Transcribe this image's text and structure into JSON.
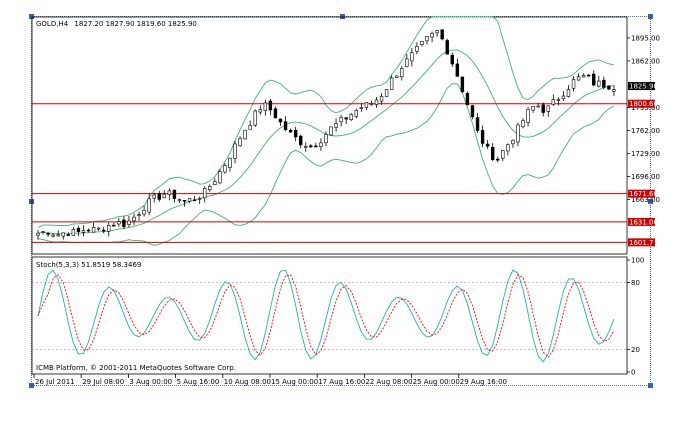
{
  "header": {
    "symbol": "GOLD,H4",
    "ohlc": "1827.20 1827.90 1819.60 1825.90"
  },
  "indicator": {
    "label": "Stoch(5,3,3) 51.8519 58.3469",
    "levels": [
      "100",
      "80",
      "20",
      "0"
    ]
  },
  "copyright": "ICMB Platform, © 2001-2011 MetaQuotes Software Corp.",
  "price_axis": {
    "ticks": [
      "1895.00",
      "1862.00",
      "1795.00",
      "1762.00",
      "1729.00",
      "1696.00",
      "1663.00"
    ],
    "current_price": "1825.90",
    "level_tags": [
      "1800.60",
      "1671.60",
      "1631.00",
      "1601.7"
    ]
  },
  "time_axis": {
    "ticks": [
      "26 Jul 2011",
      "29 Jul 08:00",
      "3 Aug 00:00",
      "5 Aug 16:00",
      "10 Aug 08:00",
      "15 Aug 00:00",
      "17 Aug 16:00",
      "22 Aug 08:00",
      "25 Aug 00:00",
      "29 Aug 16:00"
    ]
  },
  "colors": {
    "candles": "#000000",
    "bands": "#3cb371",
    "levels": "#d00000",
    "stoch_main": "#20b2aa",
    "stoch_signal": "#ff0000",
    "current_tag": "#000000"
  },
  "chart_data": {
    "type": "candlestick",
    "title": "",
    "price_range": [
      1585,
      1925
    ],
    "horizontal_levels": [
      1800.6,
      1671.6,
      1631.0,
      1601.7
    ],
    "x_labels": [
      "26 Jul 2011",
      "29 Jul 08:00",
      "3 Aug 00:00",
      "5 Aug 16:00",
      "10 Aug 08:00",
      "15 Aug 00:00",
      "17 Aug 16:00",
      "22 Aug 08:00",
      "25 Aug 00:00",
      "29 Aug 16:00"
    ],
    "approx_close": [
      1615,
      1618,
      1613,
      1617,
      1615,
      1622,
      1619,
      1625,
      1630,
      1628,
      1640,
      1655,
      1665,
      1672,
      1668,
      1660,
      1665,
      1672,
      1690,
      1710,
      1735,
      1760,
      1780,
      1800,
      1790,
      1770,
      1755,
      1745,
      1740,
      1750,
      1765,
      1775,
      1785,
      1795,
      1800,
      1810,
      1830,
      1850,
      1865,
      1880,
      1895,
      1905,
      1875,
      1840,
      1800,
      1760,
      1735,
      1720,
      1740,
      1760,
      1785,
      1800,
      1790,
      1805,
      1820,
      1835,
      1840,
      1830,
      1828,
      1825.9
    ]
  }
}
